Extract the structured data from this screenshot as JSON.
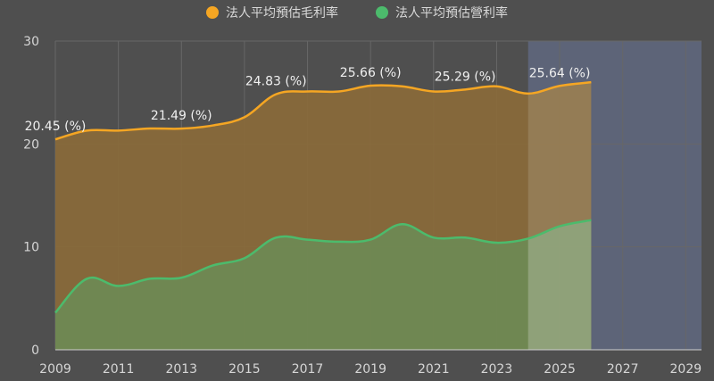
{
  "chart_data": {
    "type": "area",
    "x_range": [
      2009,
      2029.5
    ],
    "ylim": [
      0,
      30
    ],
    "y_ticks": [
      0,
      10,
      20,
      30
    ],
    "x_ticks": [
      2009,
      2011,
      2013,
      2015,
      2017,
      2019,
      2021,
      2023,
      2025,
      2027,
      2029
    ],
    "forecast_start": 2024,
    "grid": true,
    "legend_position": "top-center",
    "series": [
      {
        "name": "法人平均預估毛利率",
        "color": "#f5a623",
        "fill": "#8a6a3a",
        "x": [
          2009,
          2010,
          2011,
          2012,
          2013,
          2014,
          2015,
          2016,
          2017,
          2018,
          2019,
          2020,
          2021,
          2022,
          2023,
          2024,
          2025,
          2026
        ],
        "values": [
          20.45,
          21.3,
          21.3,
          21.5,
          21.49,
          21.8,
          22.6,
          24.83,
          25.1,
          25.1,
          25.66,
          25.6,
          25.1,
          25.29,
          25.6,
          24.9,
          25.64,
          26.0
        ]
      },
      {
        "name": "法人平均預估營利率",
        "color": "#4cbb6c",
        "fill": "#6e8a55",
        "x": [
          2009,
          2010,
          2011,
          2012,
          2013,
          2014,
          2015,
          2016,
          2017,
          2018,
          2019,
          2020,
          2021,
          2022,
          2023,
          2024,
          2025,
          2026
        ],
        "values": [
          3.6,
          6.9,
          6.2,
          6.9,
          7.0,
          8.2,
          8.9,
          10.9,
          10.7,
          10.5,
          10.7,
          12.2,
          10.9,
          10.9,
          10.4,
          10.8,
          12.0,
          12.6
        ]
      }
    ],
    "data_labels": [
      {
        "x": 2009,
        "y": 20.45,
        "text": "20.45 (%)"
      },
      {
        "x": 2013,
        "y": 21.49,
        "text": "21.49 (%)"
      },
      {
        "x": 2016,
        "y": 24.83,
        "text": "24.83 (%)"
      },
      {
        "x": 2019,
        "y": 25.66,
        "text": "25.66 (%)"
      },
      {
        "x": 2022,
        "y": 25.29,
        "text": "25.29 (%)"
      },
      {
        "x": 2025,
        "y": 25.64,
        "text": "25.64 (%)"
      }
    ]
  },
  "legend": {
    "gross_margin": "法人平均預估毛利率",
    "operating_margin": "法人平均預估營利率"
  }
}
